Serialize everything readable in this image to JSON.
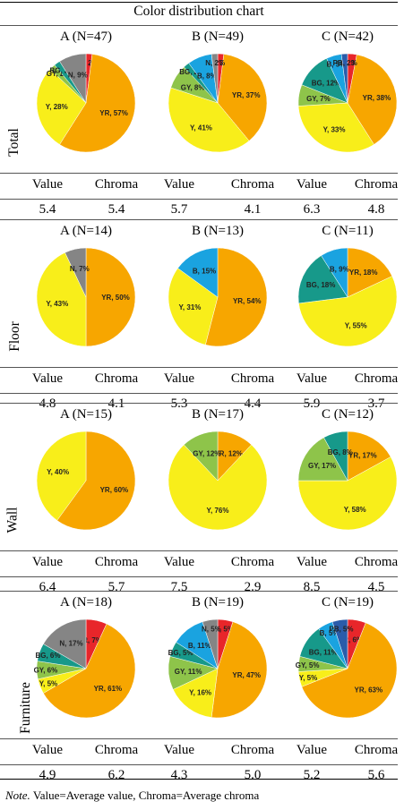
{
  "title": "Color distribution chart",
  "note_prefix": "Note.",
  "note_text": " Value=Average value, Chroma=Average chroma",
  "colors": {
    "R": "#e8262a",
    "YR": "#f7a600",
    "Y": "#f8ee1a",
    "GY": "#8ec44a",
    "BG": "#17998a",
    "B": "#1aa3e0",
    "PB": "#2a5caa",
    "N": "#858585"
  },
  "chart_data": [
    {
      "type": "pie",
      "row": "Total",
      "charts": [
        {
          "group": "A (N=47)",
          "value_label": "Value",
          "chroma_label": "Chroma",
          "value": "5.4",
          "chroma": "5.4",
          "slices": [
            {
              "code": "R",
              "percent": 2,
              "label": "R, 2%"
            },
            {
              "code": "YR",
              "percent": 57,
              "label": "YR, 57%"
            },
            {
              "code": "Y",
              "percent": 28,
              "label": "Y, 28%"
            },
            {
              "code": "GY",
              "percent": 2,
              "label": "GY, 2%"
            },
            {
              "code": "BG",
              "percent": 2,
              "label": "BG, 2%"
            },
            {
              "code": "N",
              "percent": 9,
              "label": "N, 9%"
            }
          ]
        },
        {
          "group": "B (N=49)",
          "value_label": "Value",
          "chroma_label": "Chroma",
          "value": "5.7",
          "chroma": "4.1",
          "slices": [
            {
              "code": "R",
              "percent": 2,
              "label": "R, 2%"
            },
            {
              "code": "YR",
              "percent": 37,
              "label": "YR, 37%"
            },
            {
              "code": "Y",
              "percent": 41,
              "label": "Y, 41%"
            },
            {
              "code": "GY",
              "percent": 8,
              "label": "GY, 8%"
            },
            {
              "code": "BG",
              "percent": 2,
              "label": "BG, 2%"
            },
            {
              "code": "B",
              "percent": 8,
              "label": "B, 8%"
            },
            {
              "code": "N",
              "percent": 2,
              "label": "N, 2%"
            }
          ]
        },
        {
          "group": "C (N=42)",
          "value_label": "Value",
          "chroma_label": "Chroma",
          "value": "6.3",
          "chroma": "4.8",
          "slices": [
            {
              "code": "R",
              "percent": 3,
              "label": "R, 3%"
            },
            {
              "code": "YR",
              "percent": 38,
              "label": "YR, 38%"
            },
            {
              "code": "Y",
              "percent": 33,
              "label": "Y, 33%"
            },
            {
              "code": "GY",
              "percent": 7,
              "label": "GY, 7%"
            },
            {
              "code": "BG",
              "percent": 12,
              "label": "BG, 12%"
            },
            {
              "code": "B",
              "percent": 5,
              "label": "B, 5%"
            },
            {
              "code": "PB",
              "percent": 2,
              "label": "PB, 2%"
            }
          ]
        }
      ]
    },
    {
      "type": "pie",
      "row": "Floor",
      "charts": [
        {
          "group": "A (N=14)",
          "value_label": "Value",
          "chroma_label": "Chroma",
          "value": "4.8",
          "chroma": "4.1",
          "slices": [
            {
              "code": "YR",
              "percent": 50,
              "label": "YR, 50%"
            },
            {
              "code": "Y",
              "percent": 43,
              "label": "Y, 43%"
            },
            {
              "code": "N",
              "percent": 7,
              "label": "N, 7%"
            }
          ]
        },
        {
          "group": "B (N=13)",
          "value_label": "Value",
          "chroma_label": "Chroma",
          "value": "5.3",
          "chroma": "4.4",
          "slices": [
            {
              "code": "YR",
              "percent": 54,
              "label": "YR, 54%"
            },
            {
              "code": "Y",
              "percent": 31,
              "label": "Y, 31%"
            },
            {
              "code": "B",
              "percent": 15,
              "label": "B, 15%"
            }
          ]
        },
        {
          "group": "C (N=11)",
          "value_label": "Value",
          "chroma_label": "Chroma",
          "value": "5.9",
          "chroma": "3.7",
          "slices": [
            {
              "code": "YR",
              "percent": 18,
              "label": "YR, 18%"
            },
            {
              "code": "Y",
              "percent": 55,
              "label": "Y, 55%"
            },
            {
              "code": "BG",
              "percent": 18,
              "label": "BG, 18%"
            },
            {
              "code": "B",
              "percent": 9,
              "label": "B, 9%"
            }
          ]
        }
      ]
    },
    {
      "type": "pie",
      "row": "Wall",
      "charts": [
        {
          "group": "A (N=15)",
          "value_label": "Value",
          "chroma_label": "Chroma",
          "value": "6.4",
          "chroma": "5.7",
          "slices": [
            {
              "code": "YR",
              "percent": 60,
              "label": "YR, 60%"
            },
            {
              "code": "Y",
              "percent": 40,
              "label": "Y, 40%"
            }
          ]
        },
        {
          "group": "B (N=17)",
          "value_label": "Value",
          "chroma_label": "Chroma",
          "value": "7.5",
          "chroma": "2.9",
          "slices": [
            {
              "code": "YR",
              "percent": 12,
              "label": "YR, 12%"
            },
            {
              "code": "Y",
              "percent": 76,
              "label": "Y, 76%"
            },
            {
              "code": "GY",
              "percent": 12,
              "label": "GY, 12%"
            }
          ]
        },
        {
          "group": "C (N=12)",
          "value_label": "Value",
          "chroma_label": "Chroma",
          "value": "8.5",
          "chroma": "4.5",
          "slices": [
            {
              "code": "YR",
              "percent": 17,
              "label": "YR, 17%"
            },
            {
              "code": "Y",
              "percent": 58,
              "label": "Y, 58%"
            },
            {
              "code": "GY",
              "percent": 17,
              "label": "GY, 17%"
            },
            {
              "code": "BG",
              "percent": 8,
              "label": "BG, 8%"
            }
          ]
        }
      ]
    },
    {
      "type": "pie",
      "row": "Furniture",
      "charts": [
        {
          "group": "A (N=18)",
          "value_label": "Value",
          "chroma_label": "Chroma",
          "value": "4.9",
          "chroma": "6.2",
          "slices": [
            {
              "code": "R",
              "percent": 7,
              "label": "R, 7%"
            },
            {
              "code": "YR",
              "percent": 61,
              "label": "YR, 61%"
            },
            {
              "code": "Y",
              "percent": 5,
              "label": "Y, 5%"
            },
            {
              "code": "GY",
              "percent": 6,
              "label": "GY, 6%"
            },
            {
              "code": "BG",
              "percent": 6,
              "label": "BG, 6%"
            },
            {
              "code": "N",
              "percent": 17,
              "label": "N, 17%"
            }
          ]
        },
        {
          "group": "B (N=19)",
          "value_label": "Value",
          "chroma_label": "Chroma",
          "value": "4.3",
          "chroma": "5.0",
          "slices": [
            {
              "code": "R",
              "percent": 5,
              "label": "R, 5%"
            },
            {
              "code": "YR",
              "percent": 47,
              "label": "YR, 47%"
            },
            {
              "code": "Y",
              "percent": 16,
              "label": "Y, 16%"
            },
            {
              "code": "GY",
              "percent": 11,
              "label": "GY, 11%"
            },
            {
              "code": "BG",
              "percent": 5,
              "label": "BG, 5%"
            },
            {
              "code": "B",
              "percent": 11,
              "label": "B, 11%"
            },
            {
              "code": "N",
              "percent": 5,
              "label": "N, 5%"
            }
          ]
        },
        {
          "group": "C (N=19)",
          "value_label": "Value",
          "chroma_label": "Chroma",
          "value": "5.2",
          "chroma": "5.6",
          "slices": [
            {
              "code": "R",
              "percent": 6,
              "label": "R, 6%"
            },
            {
              "code": "YR",
              "percent": 63,
              "label": "YR, 63%"
            },
            {
              "code": "Y",
              "percent": 5,
              "label": "Y, 5%"
            },
            {
              "code": "GY",
              "percent": 5,
              "label": "GY, 5%"
            },
            {
              "code": "BG",
              "percent": 11,
              "label": "BG, 11%"
            },
            {
              "code": "B",
              "percent": 5,
              "label": "B, 5%"
            },
            {
              "code": "PB",
              "percent": 5,
              "label": "PB, 5%"
            }
          ]
        }
      ]
    }
  ]
}
